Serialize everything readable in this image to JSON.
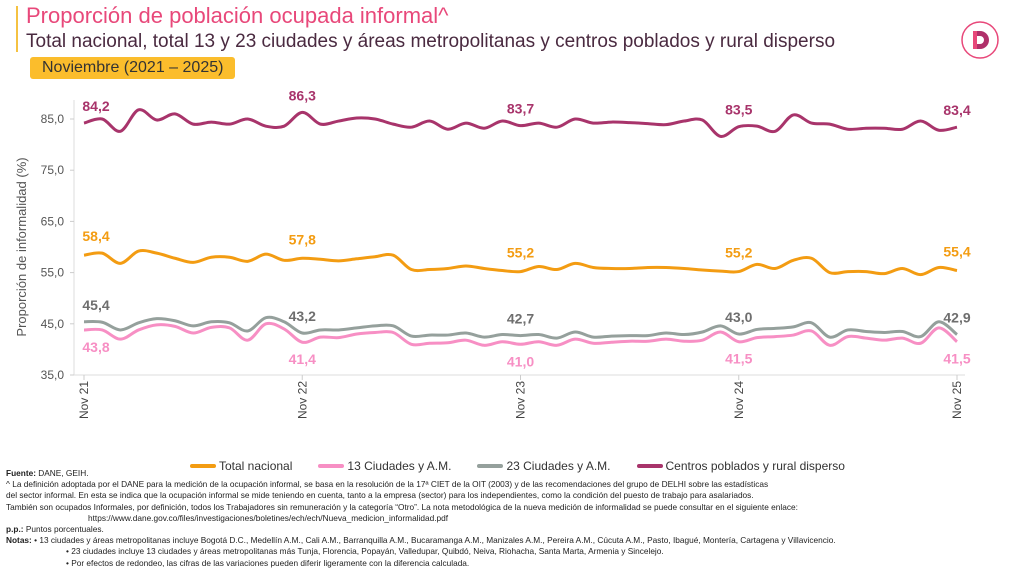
{
  "header": {
    "title": "Proporción de población ocupada informal^",
    "subtitle": "Total nacional, total 13 y 23 ciudades y áreas metropolitanas y centros poblados y rural disperso",
    "period": "Noviembre (2021 – 2025)",
    "logo_letter": "D"
  },
  "chart_data": {
    "type": "line",
    "ylabel": "Proporción de informalidad (%)",
    "ylim": [
      35,
      88
    ],
    "yticks": [
      "35,0",
      "45,0",
      "55,0",
      "65,0",
      "75,0",
      "85,0"
    ],
    "ytick_values": [
      35,
      45,
      55,
      65,
      75,
      85
    ],
    "xtick_labels": [
      "Nov 21",
      "Nov 22",
      "Nov 23",
      "Nov 24",
      "Nov 25"
    ],
    "xtick_indices": [
      0,
      12,
      24,
      36,
      48
    ],
    "legend_position": "bottom",
    "series": [
      {
        "name": "Total nacional",
        "color": "#f39c12",
        "values": [
          58.4,
          58.8,
          56.8,
          59.2,
          58.8,
          57.8,
          57.0,
          58.0,
          58.0,
          57.2,
          58.6,
          57.4,
          57.8,
          57.6,
          57.3,
          57.7,
          58.1,
          58.4,
          55.6,
          55.6,
          55.8,
          56.3,
          55.8,
          55.4,
          55.2,
          56.2,
          55.6,
          56.8,
          56.0,
          55.8,
          55.8,
          56.0,
          56.0,
          55.8,
          55.5,
          55.3,
          55.2,
          56.6,
          55.8,
          57.4,
          57.8,
          55.0,
          55.2,
          55.2,
          54.8,
          55.8,
          54.6,
          56.0,
          55.4
        ],
        "labels": [
          {
            "i": 0,
            "text": "58,4"
          },
          {
            "i": 12,
            "text": "57,8"
          },
          {
            "i": 24,
            "text": "55,2"
          },
          {
            "i": 36,
            "text": "55,2"
          },
          {
            "i": 48,
            "text": "55,4"
          }
        ]
      },
      {
        "name": "13 Ciudades y A.M.",
        "color": "#f78fc4",
        "values": [
          43.8,
          43.8,
          42.0,
          43.8,
          44.8,
          44.5,
          43.2,
          44.3,
          44.2,
          41.8,
          45.0,
          44.0,
          41.4,
          42.4,
          42.3,
          43.0,
          43.3,
          43.3,
          41.0,
          41.2,
          41.3,
          41.8,
          40.8,
          41.5,
          41.0,
          41.5,
          40.8,
          42.0,
          41.2,
          41.4,
          41.6,
          41.6,
          42.0,
          41.6,
          41.8,
          43.4,
          41.5,
          42.3,
          42.5,
          42.8,
          43.6,
          40.8,
          42.5,
          42.2,
          41.8,
          42.2,
          41.2,
          44.2,
          41.5
        ],
        "labels": [
          {
            "i": 0,
            "text": "43,8"
          },
          {
            "i": 12,
            "text": "41,4"
          },
          {
            "i": 24,
            "text": "41,0"
          },
          {
            "i": 36,
            "text": "41,5"
          },
          {
            "i": 48,
            "text": "41,5"
          }
        ]
      },
      {
        "name": "23 Ciudades y A.M.",
        "color": "#95a09c",
        "values": [
          45.4,
          45.3,
          43.8,
          45.2,
          46.0,
          45.6,
          44.6,
          45.4,
          45.2,
          43.6,
          46.2,
          45.4,
          43.2,
          43.8,
          43.8,
          44.2,
          44.6,
          44.6,
          42.6,
          42.8,
          42.8,
          43.2,
          42.4,
          42.9,
          42.7,
          42.9,
          42.2,
          43.4,
          42.4,
          42.6,
          42.7,
          42.7,
          43.2,
          42.9,
          43.4,
          44.6,
          43.0,
          43.9,
          44.1,
          44.4,
          45.2,
          42.4,
          43.8,
          43.5,
          43.3,
          43.5,
          42.5,
          45.4,
          42.9
        ],
        "labels": [
          {
            "i": 0,
            "text": "45,4"
          },
          {
            "i": 12,
            "text": "43,2"
          },
          {
            "i": 24,
            "text": "42,7"
          },
          {
            "i": 36,
            "text": "43,0"
          },
          {
            "i": 48,
            "text": "42,9"
          }
        ]
      },
      {
        "name": "Centros poblados y rural disperso",
        "color": "#a8346b",
        "values": [
          84.2,
          85.0,
          82.6,
          86.8,
          84.8,
          86.0,
          84.0,
          84.4,
          84.0,
          85.0,
          83.6,
          83.6,
          86.3,
          84.0,
          84.6,
          85.2,
          85.0,
          84.0,
          83.4,
          84.6,
          83.0,
          84.2,
          83.2,
          84.6,
          83.7,
          84.2,
          83.4,
          85.0,
          84.2,
          84.4,
          84.3,
          84.1,
          83.9,
          84.6,
          84.8,
          81.6,
          83.5,
          83.6,
          82.6,
          85.8,
          84.2,
          84.0,
          83.0,
          83.2,
          83.2,
          83.0,
          84.6,
          82.8,
          83.4
        ],
        "labels": [
          {
            "i": 0,
            "text": "84,2"
          },
          {
            "i": 12,
            "text": "86,3"
          },
          {
            "i": 24,
            "text": "83,7"
          },
          {
            "i": 36,
            "text": "83,5"
          },
          {
            "i": 48,
            "text": "83,4"
          }
        ]
      }
    ]
  },
  "notes": {
    "source_label": "Fuente:",
    "source": " DANE, GEIH.",
    "def1": "^ La definición adoptada por el DANE para la medición de la ocupación informal, se basa en la resolución de la 17ª CIET de la OIT (2003) y de las recomendaciones del grupo de DELHI sobre las estadísticas",
    "def2": "del sector informal. En esta se indica que la ocupación informal se mide teniendo en cuenta, tanto a la empresa (sector) para los independientes, como la condición del puesto de trabajo para asalariados.",
    "def3": "También son ocupados Informales, por definición,  todos los Trabajadores sin remuneración y la categoría “Otro”.  La nota metodológica de la nueva medición de informalidad se puede consultar en el siguiente enlace:",
    "link": "https://www.dane.gov.co/files/investigaciones/boletines/ech/ech/Nueva_medicion_informalidad.pdf",
    "pp_label": "p.p.:",
    "pp": " Puntos porcentuales.",
    "notas_label": "Notas:",
    "n1": " • 13 ciudades y áreas metropolitanas incluye Bogotá D.C., Medellín A.M., Cali A.M., Barranquilla A.M., Bucaramanga A.M., Manizales A.M., Pereira A.M., Cúcuta A.M., Pasto, Ibagué, Montería, Cartagena y Villavicencio.",
    "n2": "• 23 ciudades incluye 13 ciudades y áreas metropolitanas más Tunja, Florencia, Popayán, Valledupar, Quibdó, Neiva, Riohacha, Santa Marta, Armenia y Sincelejo.",
    "n3": "• Por efectos de redondeo, las cifras de las variaciones pueden diferir ligeramente con la diferencia calculada."
  }
}
